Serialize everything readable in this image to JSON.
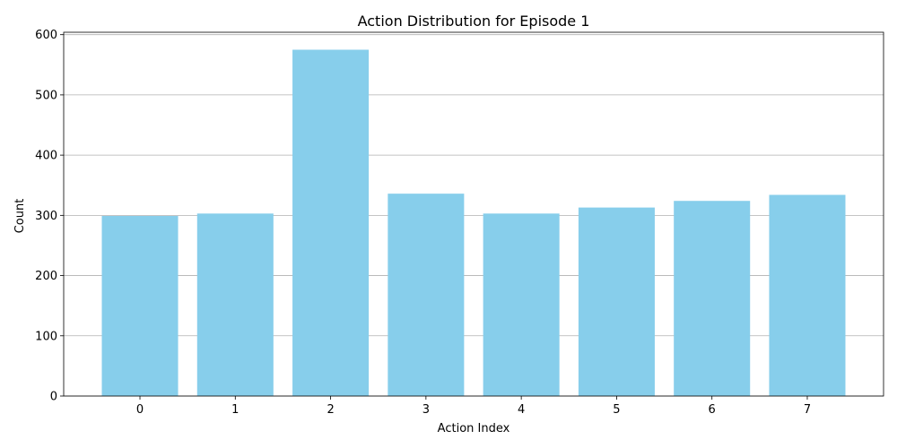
{
  "chart_data": {
    "type": "bar",
    "title": "Action Distribution for Episode 1",
    "xlabel": "Action Index",
    "ylabel": "Count",
    "categories": [
      "0",
      "1",
      "2",
      "3",
      "4",
      "5",
      "6",
      "7"
    ],
    "values": [
      299,
      303,
      575,
      336,
      303,
      313,
      324,
      334
    ],
    "ylim": [
      0,
      604
    ],
    "yticks": [
      0,
      100,
      200,
      300,
      400,
      500,
      600
    ],
    "grid": "y",
    "bar_color": "#87ceeb",
    "grid_color": "#b0b0b0"
  }
}
